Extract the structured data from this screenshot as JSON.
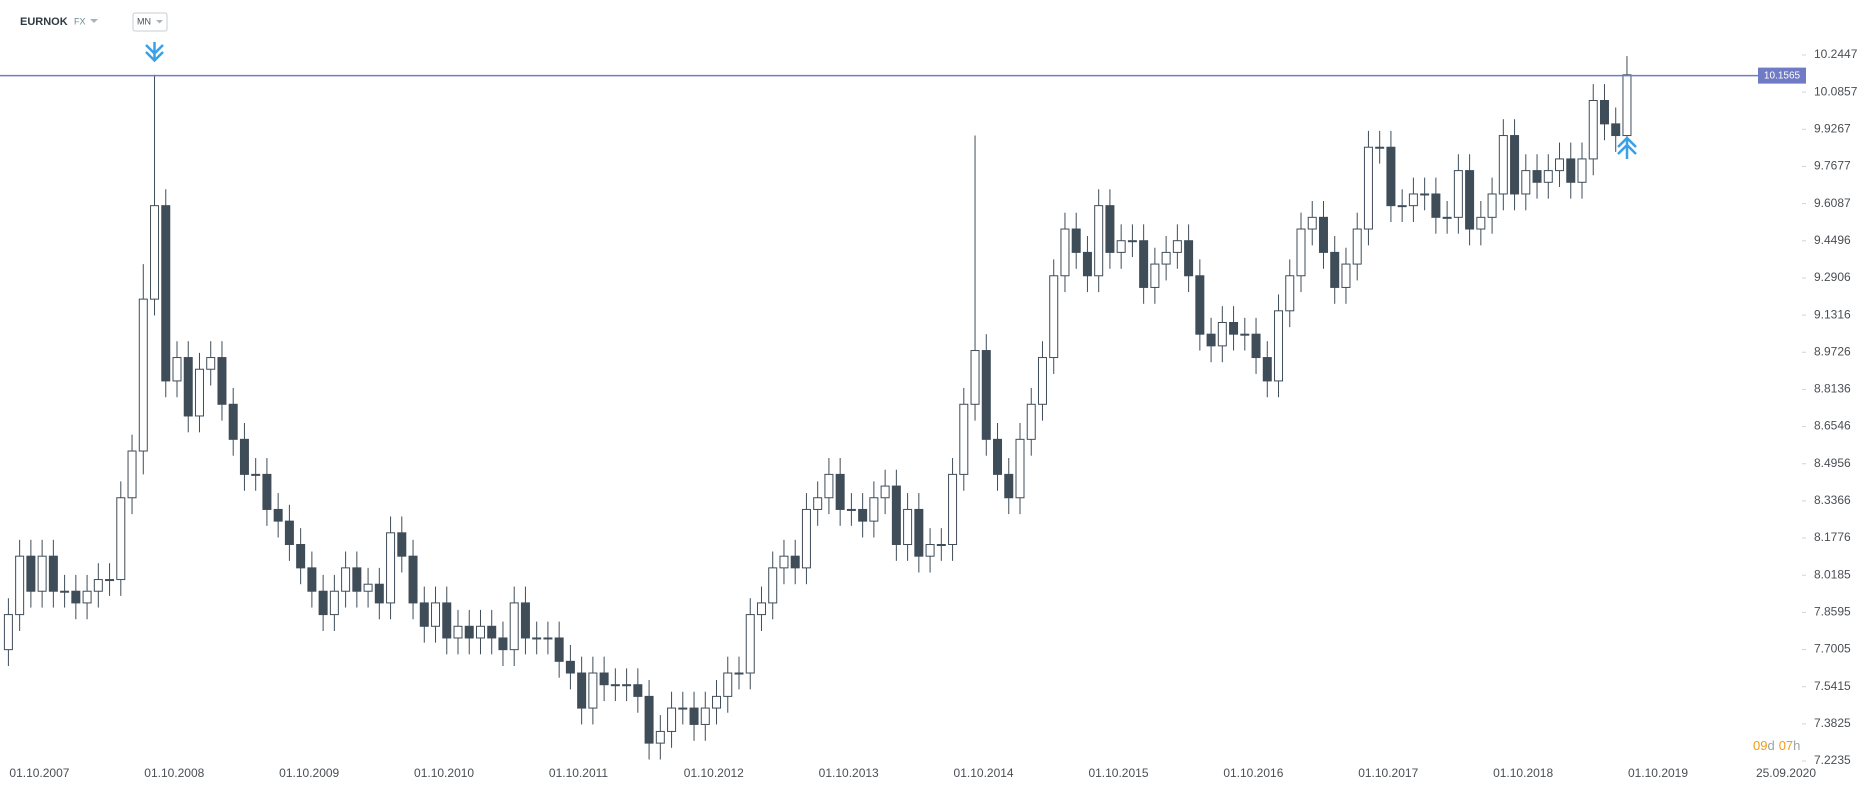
{
  "header": {
    "symbol": "EURNOK",
    "market": "FX",
    "interval": "MN"
  },
  "countdown": [
    "09",
    "d",
    "07",
    "h"
  ],
  "chart_data": {
    "type": "candlestick",
    "up_color": "#ffffff",
    "down_color": "#3f4d59",
    "outline_color": "#3f4d59",
    "level": 10.1565,
    "level_color": "#6f7bc4",
    "ylim": [
      7.2235,
      10.2447
    ],
    "yticks": [
      10.2447,
      10.0857,
      9.9267,
      9.7677,
      9.6087,
      9.4496,
      9.2906,
      9.1316,
      8.9726,
      8.8136,
      8.6546,
      8.4956,
      8.3366,
      8.1776,
      8.0185,
      7.8595,
      7.7005,
      7.5415,
      7.3825,
      7.2235
    ],
    "x_end_label": "25.09.2020",
    "categories": [
      "01.10.2007",
      null,
      null,
      null,
      null,
      null,
      null,
      null,
      null,
      null,
      null,
      null,
      "01.10.2008",
      null,
      null,
      null,
      null,
      null,
      null,
      null,
      null,
      null,
      null,
      null,
      "01.10.2009",
      null,
      null,
      null,
      null,
      null,
      null,
      null,
      null,
      null,
      null,
      null,
      "01.10.2010",
      null,
      null,
      null,
      null,
      null,
      null,
      null,
      null,
      null,
      null,
      null,
      "01.10.2011",
      null,
      null,
      null,
      null,
      null,
      null,
      null,
      null,
      null,
      null,
      null,
      "01.10.2012",
      null,
      null,
      null,
      null,
      null,
      null,
      null,
      null,
      null,
      null,
      null,
      "01.10.2013",
      null,
      null,
      null,
      null,
      null,
      null,
      null,
      null,
      null,
      null,
      null,
      "01.10.2014",
      null,
      null,
      null,
      null,
      null,
      null,
      null,
      null,
      null,
      null,
      null,
      "01.10.2015",
      null,
      null,
      null,
      null,
      null,
      null,
      null,
      null,
      null,
      null,
      null,
      "01.10.2016",
      null,
      null,
      null,
      null,
      null,
      null,
      null,
      null,
      null,
      null,
      null,
      "01.10.2017",
      null,
      null,
      null,
      null,
      null,
      null,
      null,
      null,
      null,
      null,
      null,
      "01.10.2018",
      null,
      null,
      null,
      null,
      null,
      null,
      null,
      null,
      null,
      null,
      null,
      "01.10.2019"
    ],
    "open": [
      7.7,
      7.85,
      8.1,
      7.95,
      8.1,
      7.95,
      7.95,
      7.9,
      7.95,
      8.0,
      8.0,
      8.35,
      8.55,
      9.2,
      9.6,
      8.85,
      8.95,
      8.7,
      8.9,
      8.95,
      8.75,
      8.6,
      8.45,
      8.45,
      8.3,
      8.25,
      8.15,
      8.05,
      7.95,
      7.85,
      7.95,
      8.05,
      7.95,
      7.98,
      7.9,
      8.2,
      8.1,
      7.9,
      7.8,
      7.9,
      7.75,
      7.8,
      7.75,
      7.8,
      7.75,
      7.7,
      7.9,
      7.75,
      7.75,
      7.75,
      7.65,
      7.6,
      7.45,
      7.6,
      7.55,
      7.55,
      7.55,
      7.5,
      7.3,
      7.35,
      7.45,
      7.45,
      7.38,
      7.45,
      7.5,
      7.6,
      7.6,
      7.85,
      7.9,
      8.05,
      8.1,
      8.05,
      8.3,
      8.35,
      8.45,
      8.3,
      8.3,
      8.25,
      8.35,
      8.4,
      8.15,
      8.3,
      8.1,
      8.15,
      8.15,
      8.45,
      8.75,
      8.98,
      8.6,
      8.45,
      8.35,
      8.6,
      8.75,
      8.95,
      9.3,
      9.5,
      9.4,
      9.3,
      9.6,
      9.4,
      9.45,
      9.45,
      9.25,
      9.35,
      9.4,
      9.45,
      9.3,
      9.05,
      9.0,
      9.1,
      9.05,
      9.05,
      8.95,
      8.85,
      9.15,
      9.3,
      9.5,
      9.55,
      9.4,
      9.25,
      9.35,
      9.5,
      9.85,
      9.85,
      9.6,
      9.6,
      9.65,
      9.65,
      9.55,
      9.55,
      9.75,
      9.5,
      9.55,
      9.65,
      9.9,
      9.65,
      9.75,
      9.7,
      9.75,
      9.8,
      9.7,
      9.8,
      10.05,
      9.95,
      9.9
    ],
    "high": [
      7.92,
      8.17,
      8.17,
      8.17,
      8.17,
      8.02,
      8.02,
      8.02,
      8.07,
      8.07,
      8.42,
      8.62,
      9.35,
      10.16,
      9.67,
      9.02,
      9.02,
      8.97,
      9.02,
      9.02,
      8.82,
      8.67,
      8.52,
      8.52,
      8.37,
      8.32,
      8.22,
      8.12,
      8.02,
      8.02,
      8.12,
      8.12,
      8.05,
      8.05,
      8.27,
      8.27,
      8.17,
      7.97,
      7.97,
      7.97,
      7.87,
      7.87,
      7.87,
      7.87,
      7.82,
      7.97,
      7.97,
      7.82,
      7.82,
      7.82,
      7.72,
      7.67,
      7.67,
      7.67,
      7.62,
      7.62,
      7.62,
      7.57,
      7.42,
      7.52,
      7.52,
      7.52,
      7.52,
      7.57,
      7.67,
      7.67,
      7.92,
      7.97,
      8.12,
      8.17,
      8.17,
      8.37,
      8.42,
      8.52,
      8.52,
      8.37,
      8.37,
      8.42,
      8.47,
      8.47,
      8.37,
      8.37,
      8.22,
      8.22,
      8.52,
      8.82,
      9.9,
      9.05,
      8.67,
      8.52,
      8.67,
      8.82,
      9.02,
      9.37,
      9.57,
      9.57,
      9.47,
      9.67,
      9.67,
      9.52,
      9.52,
      9.52,
      9.42,
      9.47,
      9.52,
      9.52,
      9.37,
      9.12,
      9.17,
      9.17,
      9.12,
      9.12,
      9.02,
      9.22,
      9.37,
      9.57,
      9.62,
      9.62,
      9.47,
      9.42,
      9.57,
      9.92,
      9.92,
      9.92,
      9.67,
      9.72,
      9.72,
      9.72,
      9.62,
      9.82,
      9.82,
      9.62,
      9.72,
      9.97,
      9.97,
      9.82,
      9.82,
      9.82,
      9.87,
      9.87,
      9.87,
      10.12,
      10.12,
      10.02,
      10.24
    ],
    "low": [
      7.63,
      7.78,
      7.88,
      7.88,
      7.88,
      7.88,
      7.83,
      7.83,
      7.88,
      7.93,
      7.93,
      8.28,
      8.45,
      9.13,
      8.78,
      8.78,
      8.63,
      8.63,
      8.83,
      8.68,
      8.53,
      8.38,
      8.38,
      8.23,
      8.18,
      8.08,
      7.98,
      7.88,
      7.78,
      7.78,
      7.88,
      7.88,
      7.88,
      7.83,
      7.83,
      8.03,
      7.83,
      7.73,
      7.73,
      7.68,
      7.68,
      7.68,
      7.68,
      7.68,
      7.63,
      7.63,
      7.68,
      7.68,
      7.68,
      7.58,
      7.53,
      7.38,
      7.38,
      7.48,
      7.48,
      7.48,
      7.43,
      7.23,
      7.23,
      7.28,
      7.38,
      7.31,
      7.31,
      7.38,
      7.43,
      7.53,
      7.53,
      7.78,
      7.83,
      7.98,
      7.98,
      7.98,
      8.23,
      8.28,
      8.23,
      8.23,
      8.18,
      8.18,
      8.28,
      8.08,
      8.08,
      8.03,
      8.03,
      8.08,
      8.08,
      8.38,
      8.68,
      8.53,
      8.38,
      8.28,
      8.28,
      8.53,
      8.68,
      8.88,
      9.23,
      9.33,
      9.23,
      9.23,
      9.33,
      9.33,
      9.38,
      9.18,
      9.18,
      9.28,
      9.33,
      9.23,
      8.98,
      8.93,
      8.93,
      8.98,
      8.98,
      8.88,
      8.78,
      8.78,
      9.08,
      9.23,
      9.43,
      9.33,
      9.18,
      9.18,
      9.28,
      9.43,
      9.78,
      9.53,
      9.53,
      9.53,
      9.58,
      9.48,
      9.48,
      9.48,
      9.43,
      9.43,
      9.48,
      9.58,
      9.58,
      9.58,
      9.63,
      9.63,
      9.68,
      9.63,
      9.63,
      9.73,
      9.88,
      9.83,
      9.83
    ],
    "close": [
      7.85,
      8.1,
      7.95,
      8.1,
      7.95,
      7.95,
      7.9,
      7.95,
      8.0,
      8.0,
      8.35,
      8.55,
      9.2,
      9.6,
      8.85,
      8.95,
      8.7,
      8.9,
      8.95,
      8.75,
      8.6,
      8.45,
      8.45,
      8.3,
      8.25,
      8.15,
      8.05,
      7.95,
      7.85,
      7.95,
      8.05,
      7.95,
      7.98,
      7.9,
      8.2,
      8.1,
      7.9,
      7.8,
      7.9,
      7.75,
      7.8,
      7.75,
      7.8,
      7.75,
      7.7,
      7.9,
      7.75,
      7.75,
      7.75,
      7.65,
      7.6,
      7.45,
      7.6,
      7.55,
      7.55,
      7.55,
      7.5,
      7.3,
      7.35,
      7.45,
      7.45,
      7.38,
      7.45,
      7.5,
      7.6,
      7.6,
      7.85,
      7.9,
      8.05,
      8.1,
      8.05,
      8.3,
      8.35,
      8.45,
      8.3,
      8.3,
      8.25,
      8.35,
      8.4,
      8.15,
      8.3,
      8.1,
      8.15,
      8.15,
      8.45,
      8.75,
      8.98,
      8.6,
      8.45,
      8.35,
      8.6,
      8.75,
      8.95,
      9.3,
      9.5,
      9.4,
      9.3,
      9.6,
      9.4,
      9.45,
      9.45,
      9.25,
      9.35,
      9.4,
      9.45,
      9.3,
      9.05,
      9.0,
      9.1,
      9.05,
      9.05,
      8.95,
      8.85,
      9.15,
      9.3,
      9.5,
      9.55,
      9.4,
      9.25,
      9.35,
      9.5,
      9.85,
      9.85,
      9.6,
      9.6,
      9.65,
      9.65,
      9.55,
      9.55,
      9.75,
      9.5,
      9.55,
      9.65,
      9.9,
      9.65,
      9.75,
      9.7,
      9.75,
      9.8,
      9.7,
      9.8,
      10.05,
      9.95,
      9.9,
      10.16
    ]
  }
}
